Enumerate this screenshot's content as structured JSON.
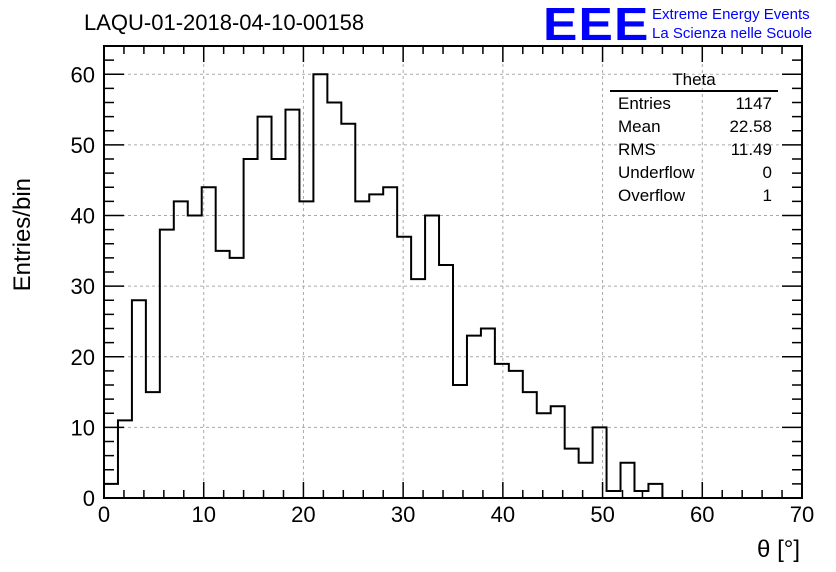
{
  "title": "LAQU-01-2018-04-10-00158",
  "logo": {
    "mark": "EEE",
    "line1": "Extreme Energy Events",
    "line2": "La Scienza nelle Scuole"
  },
  "stats": {
    "name": "Theta",
    "rows": [
      {
        "label": "Entries",
        "value": "1147"
      },
      {
        "label": "Mean",
        "value": "22.58"
      },
      {
        "label": "RMS",
        "value": "11.49"
      },
      {
        "label": "Underflow",
        "value": "0"
      },
      {
        "label": "Overflow",
        "value": "1"
      }
    ]
  },
  "chart_data": {
    "type": "bar",
    "title": "LAQU-01-2018-04-10-00158",
    "xlabel": "θ [°]",
    "ylabel": "Entries/bin",
    "xlim": [
      0,
      70
    ],
    "ylim": [
      0,
      64
    ],
    "grid": true,
    "x_ticks": [
      0,
      10,
      20,
      30,
      40,
      50,
      60,
      70
    ],
    "y_ticks": [
      0,
      10,
      20,
      30,
      40,
      50,
      60
    ],
    "bin_width": 1.4,
    "values": [
      2,
      11,
      28,
      15,
      38,
      42,
      40,
      44,
      35,
      34,
      48,
      54,
      48,
      55,
      42,
      60,
      56,
      53,
      42,
      43,
      44,
      37,
      31,
      40,
      33,
      16,
      23,
      24,
      19,
      18,
      15,
      12,
      13,
      7,
      5,
      10,
      1,
      5,
      1,
      2,
      0,
      0,
      0,
      0,
      0,
      0,
      0,
      0,
      0,
      0
    ]
  }
}
